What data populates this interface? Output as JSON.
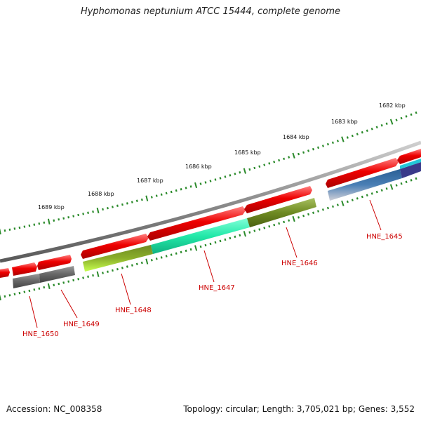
{
  "title": "Hyphomonas neptunium ATCC 15444, complete genome",
  "footer": {
    "accession": "Accession: NC_008358",
    "stats": "Topology: circular; Length: 3,705,021 bp; Genes: 3,552"
  },
  "ruler_labels": [
    "1682 kbp",
    "1683 kbp",
    "1684 kbp",
    "1685 kbp",
    "1686 kbp",
    "1687 kbp",
    "1688 kbp",
    "1689 kbp"
  ],
  "gene_labels": [
    "HNE_1645",
    "HNE_1646",
    "HNE_1647",
    "HNE_1648",
    "HNE_1649",
    "HNE_1650"
  ],
  "colors": {
    "forward_gene": "#ee0000",
    "backbone": "#8c8c8c",
    "ticks": "#2a8a2a",
    "label": "#cc0000",
    "HNE_1645": "#4a7fb5",
    "HNE_1646": "#6e8a22",
    "HNE_1647": "#22e8a8",
    "HNE_1648": "#a6e83a",
    "HNE_1649": "#666666",
    "HNE_1650": "#666666"
  }
}
